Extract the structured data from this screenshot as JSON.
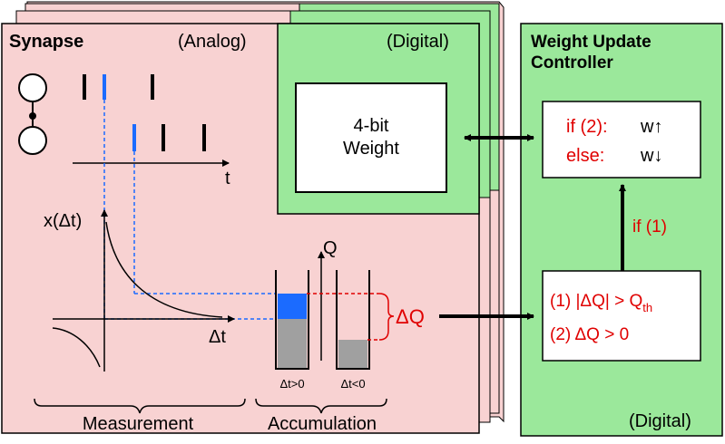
{
  "synapse": {
    "title": "Synapse",
    "analog_label": "(Analog)",
    "digital_label": "(Digital)",
    "weight_label_line1": "4-bit",
    "weight_label_line2": "Weight",
    "time_axis_label": "t",
    "x_axis_label": "x(Δt)",
    "delta_t_label": "Δt",
    "q_axis_label": "Q",
    "delta_q_label": "ΔQ",
    "cap_pos_label": "Δt>0",
    "cap_neg_label": "Δt<0",
    "measurement_label": "Measurement",
    "accumulation_label": "Accumulation"
  },
  "controller": {
    "title_line1": "Weight Update",
    "title_line2": "Controller",
    "digital_label": "(Digital)",
    "rule_if_prefix": "if (2):",
    "rule_if_action": "w↑",
    "rule_else_prefix": "else:",
    "rule_else_action": "w↓",
    "if1_label": "if (1)",
    "cond1_text": "(1) |ΔQ| > Q",
    "cond1_sub": "th",
    "cond2_text": "(2)  ΔQ  > 0"
  },
  "colors": {
    "synapse_fill": "#f8d2d2",
    "digital_fill": "#9be89b",
    "accent_red": "#e00000",
    "spike_blue": "#1b6bff",
    "charge_gray": "#a0a0a0"
  }
}
